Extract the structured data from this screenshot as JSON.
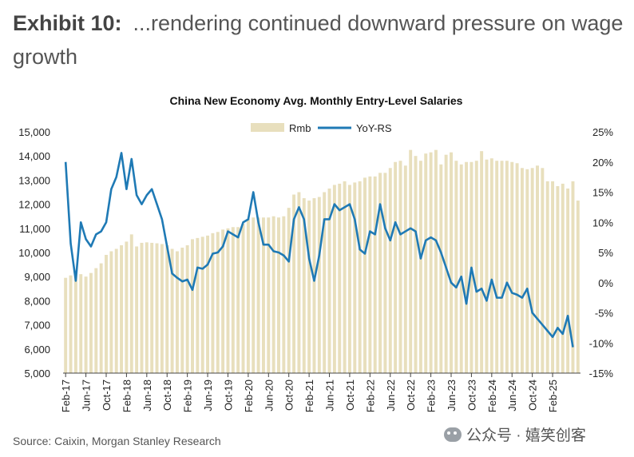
{
  "exhibit": {
    "label": "Exhibit 10:",
    "text": "...rendering continued downward pressure on wage growth"
  },
  "source": "Source: Caixin, Morgan Stanley Research",
  "watermark": {
    "icon": "wechat-icon",
    "text": "公众号 · 嬉笑创客"
  },
  "chart_data": {
    "type": "bar",
    "title": "China New Economy Avg. Monthly Entry-Level Salaries",
    "legend": {
      "placement": "top-center",
      "bar_label": "Rmb",
      "line_label": "YoY-RS"
    },
    "colors": {
      "bar": "#e8dfbd",
      "line": "#1f7ab5",
      "axis": "#444444"
    },
    "left_axis": {
      "ylim": [
        5000,
        15000
      ],
      "ticks": [
        "5,000",
        "6,000",
        "7,000",
        "8,000",
        "9,000",
        "10,000",
        "11,000",
        "12,000",
        "13,000",
        "14,000",
        "15,000"
      ]
    },
    "right_axis": {
      "ylim": [
        -15,
        25
      ],
      "ticks": [
        "-15%",
        "-10%",
        "-5%",
        "0%",
        "5%",
        "10%",
        "15%",
        "20%",
        "25%"
      ]
    },
    "x_tick_labels": [
      "Feb-17",
      "Jun-17",
      "Oct-17",
      "Feb-18",
      "Jun-18",
      "Oct-18",
      "Feb-19",
      "Jun-19",
      "Oct-19",
      "Feb-20",
      "Jun-20",
      "Oct-20",
      "Feb-21",
      "Jun-21",
      "Oct-21",
      "Feb-22",
      "Jun-22",
      "Oct-22",
      "Feb-23",
      "Jun-23",
      "Oct-23",
      "Feb-24",
      "Jun-24",
      "Oct-24",
      "Feb-25"
    ],
    "grid": false,
    "series": [
      {
        "name": "Rmb",
        "type": "bar",
        "axis": "left",
        "values": [
          8950,
          9050,
          9200,
          9100,
          9000,
          9150,
          9350,
          9550,
          9900,
          10050,
          10150,
          10300,
          10450,
          10750,
          10250,
          10400,
          10420,
          10400,
          10380,
          10350,
          10300,
          10150,
          10050,
          10200,
          10300,
          10550,
          10600,
          10650,
          10700,
          10800,
          10850,
          10950,
          11000,
          11050,
          11050,
          11200,
          11400,
          11450,
          11450,
          11450,
          11450,
          11500,
          11450,
          11500,
          11850,
          12400,
          12500,
          12250,
          12150,
          12250,
          12300,
          12500,
          12650,
          12800,
          12850,
          12950,
          12800,
          12900,
          12950,
          13100,
          13150,
          13150,
          13300,
          13300,
          13500,
          13750,
          13800,
          13600,
          14250,
          14000,
          13800,
          14100,
          14150,
          14250,
          13650,
          14050,
          14150,
          13800,
          13650,
          13750,
          13750,
          13800,
          14200,
          13850,
          13900,
          13800,
          13800,
          13800,
          13750,
          13700,
          13500,
          13450,
          13500,
          13600,
          13500,
          12950,
          12950,
          12750,
          12850,
          12650,
          12950,
          12150
        ]
      },
      {
        "name": "YoY-RS",
        "type": "line",
        "axis": "right",
        "values": [
          20.0,
          6.5,
          0.3,
          10.0,
          7.2,
          6.0,
          8.0,
          8.5,
          10.0,
          15.5,
          17.5,
          21.5,
          15.5,
          20.5,
          14.5,
          13.0,
          14.5,
          15.5,
          13.0,
          10.5,
          6.0,
          1.5,
          0.8,
          0.2,
          0.5,
          -1.2,
          2.5,
          2.3,
          3.0,
          4.8,
          5.0,
          6.0,
          8.5,
          8.0,
          7.5,
          10.0,
          10.5,
          15.0,
          10.0,
          6.3,
          6.3,
          5.2,
          5.0,
          4.5,
          3.5,
          10.5,
          12.5,
          10.5,
          4.0,
          0.3,
          4.5,
          10.5,
          10.5,
          13.0,
          12.0,
          12.5,
          13.0,
          10.5,
          5.5,
          4.8,
          8.5,
          8.0,
          13.0,
          9.0,
          7.0,
          10.0,
          8.0,
          8.5,
          9.0,
          8.5,
          4.0,
          7.0,
          7.5,
          7.0,
          5.0,
          2.5,
          0.0,
          -0.8,
          1.0,
          -3.5,
          2.5,
          -1.5,
          -1.0,
          -3.0,
          0.5,
          -2.5,
          -2.5,
          0.0,
          -1.7,
          -2.0,
          -2.5,
          -1.0,
          -5.0,
          -6.0,
          -7.0,
          -8.0,
          -9.0,
          -7.5,
          -8.5,
          -5.5,
          -10.7
        ]
      }
    ]
  }
}
